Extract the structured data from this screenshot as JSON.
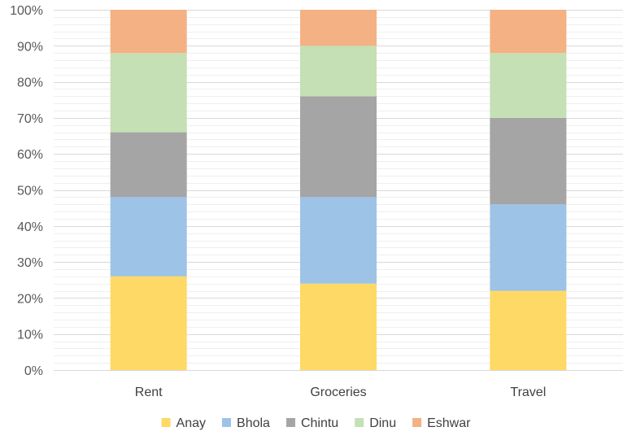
{
  "chart_data": {
    "type": "bar",
    "stacked": "percent",
    "categories": [
      "Rent",
      "Groceries",
      "Travel"
    ],
    "series": [
      {
        "name": "Anay",
        "color": "#FFD966",
        "values": [
          26,
          24,
          22
        ]
      },
      {
        "name": "Bhola",
        "color": "#9DC3E6",
        "values": [
          22,
          24,
          24
        ]
      },
      {
        "name": "Chintu",
        "color": "#A5A5A5",
        "values": [
          18,
          28,
          24
        ]
      },
      {
        "name": "Dinu",
        "color": "#C5E0B4",
        "values": [
          22,
          14,
          18
        ]
      },
      {
        "name": "Eshwar",
        "color": "#F4B183",
        "values": [
          12,
          10,
          12
        ]
      }
    ],
    "ylim": [
      0,
      100
    ],
    "yticks": [
      "0%",
      "10%",
      "20%",
      "30%",
      "40%",
      "50%",
      "60%",
      "70%",
      "80%",
      "90%",
      "100%"
    ],
    "grid": true,
    "legend_position": "bottom"
  }
}
